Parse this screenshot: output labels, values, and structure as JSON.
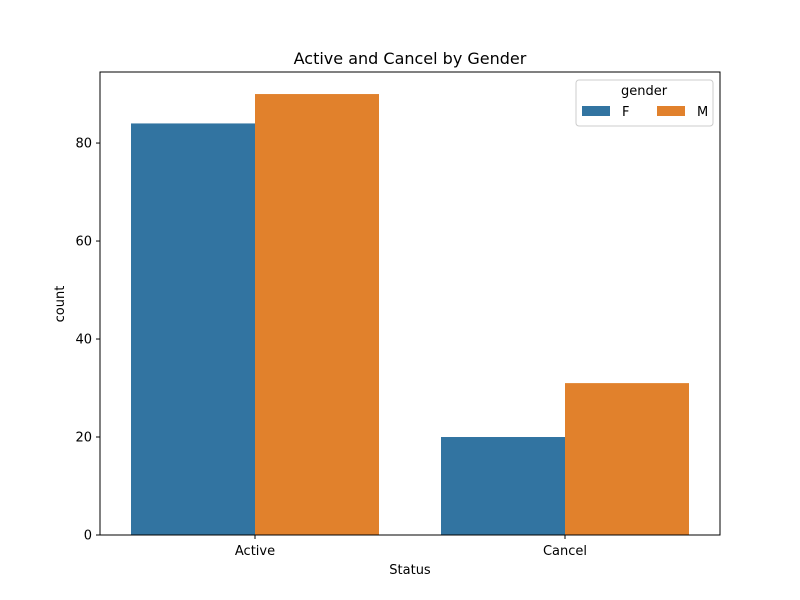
{
  "chart_data": {
    "type": "bar",
    "title": "Active and Cancel by Gender",
    "xlabel": "Status",
    "ylabel": "count",
    "categories": [
      "Active",
      "Cancel"
    ],
    "series": [
      {
        "name": "F",
        "values": [
          84,
          20
        ],
        "color": "#3274a1"
      },
      {
        "name": "M",
        "values": [
          90,
          31
        ],
        "color": "#e1812c"
      }
    ],
    "ylim": [
      0,
      94.5
    ],
    "yticks": [
      0,
      20,
      40,
      60,
      80
    ],
    "grid": false,
    "legend": {
      "title": "gender",
      "placement": "top-right",
      "columns": 2
    }
  }
}
